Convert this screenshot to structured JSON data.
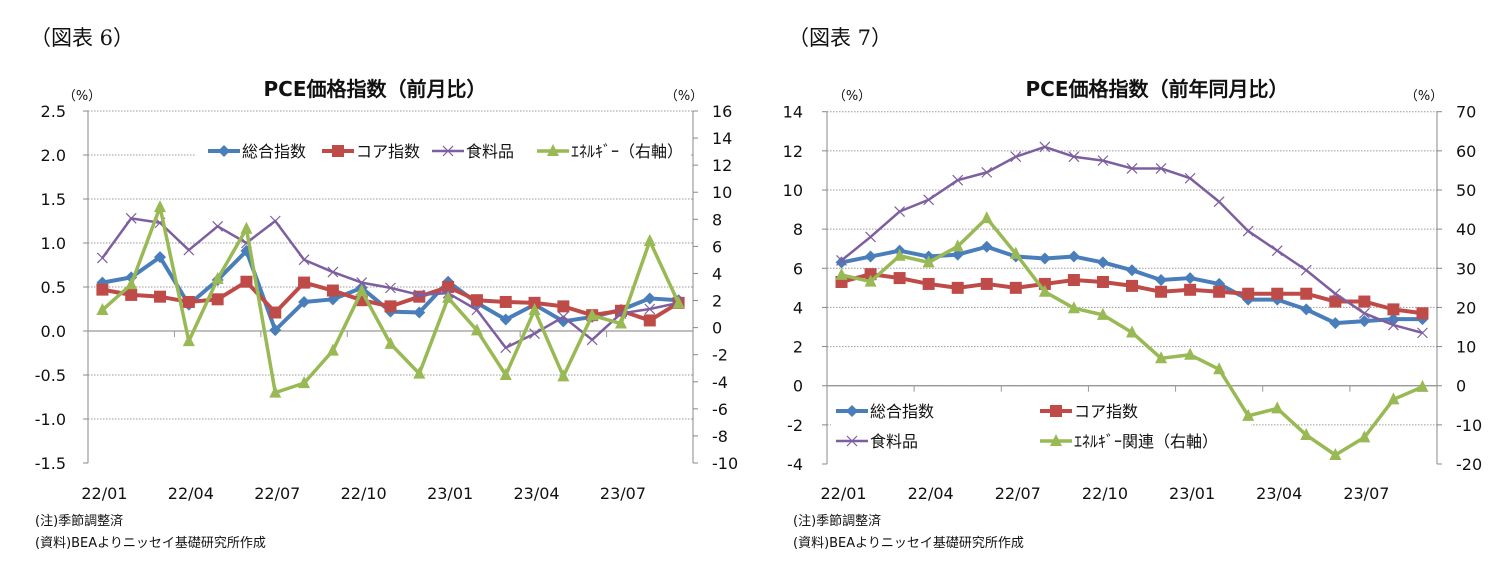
{
  "figures": [
    {
      "label": "（図表 6）",
      "note": "(注)季節調整済",
      "source": "(資料)BEAよりニッセイ基礎研究所作成"
    },
    {
      "label": "（図表 7）",
      "note": "(注)季節調整済",
      "source": "(資料)BEAよりニッセイ基礎研究所作成"
    }
  ],
  "chart_data": [
    {
      "type": "line",
      "title": "PCE価格指数（前月比）",
      "y_unit_left": "（%）",
      "y_unit_right": "（%）",
      "ylim_left": [
        -1.5,
        2.5
      ],
      "yticks_left": [
        "2.5",
        "2.0",
        "1.5",
        "1.0",
        "0.5",
        "0.0",
        "-0.5",
        "-1.0",
        "-1.5"
      ],
      "ylim_right": [
        -10,
        16
      ],
      "yticks_right": [
        "16",
        "14",
        "12",
        "10",
        "8",
        "6",
        "4",
        "2",
        "0",
        "-2",
        "-4",
        "-6",
        "-8",
        "-10"
      ],
      "grid": true,
      "legend_position": "top",
      "categories": [
        "22/01",
        "22/02",
        "22/03",
        "22/04",
        "22/05",
        "22/06",
        "22/07",
        "22/08",
        "22/09",
        "22/10",
        "22/11",
        "22/12",
        "23/01",
        "23/02",
        "23/03",
        "23/04",
        "23/05",
        "23/06",
        "23/07",
        "23/08",
        "23/09"
      ],
      "xtick_labels": [
        "22/01",
        "22/04",
        "22/07",
        "22/10",
        "23/01",
        "23/04",
        "23/07"
      ],
      "series": [
        {
          "name": "総合指数",
          "axis": "left",
          "color": "#4a7ebb",
          "marker": "diamond",
          "values": [
            0.55,
            0.61,
            0.84,
            0.3,
            0.58,
            0.91,
            0.01,
            0.33,
            0.36,
            0.49,
            0.22,
            0.21,
            0.56,
            0.32,
            0.13,
            0.3,
            0.11,
            0.16,
            0.24,
            0.37,
            0.35
          ]
        },
        {
          "name": "コア指数",
          "axis": "left",
          "color": "#be4b48",
          "marker": "square",
          "values": [
            0.47,
            0.41,
            0.39,
            0.33,
            0.36,
            0.56,
            0.21,
            0.55,
            0.46,
            0.35,
            0.28,
            0.39,
            0.5,
            0.35,
            0.33,
            0.32,
            0.28,
            0.18,
            0.23,
            0.12,
            0.32
          ]
        },
        {
          "name": "食料品",
          "axis": "left",
          "color": "#7d5fa0",
          "marker": "x",
          "values": [
            0.83,
            1.28,
            1.23,
            0.92,
            1.19,
            1.0,
            1.25,
            0.81,
            0.67,
            0.55,
            0.49,
            0.41,
            0.43,
            0.24,
            -0.19,
            -0.03,
            0.16,
            -0.1,
            0.2,
            0.25,
            0.32
          ]
        },
        {
          "name": "ｴﾈﾙｷﾞｰ（右軸）",
          "axis": "right",
          "color": "#98b954",
          "marker": "triangle",
          "values": [
            1.3,
            3.2,
            8.9,
            -1.0,
            3.6,
            7.3,
            -4.8,
            -4.1,
            -1.7,
            2.7,
            -1.2,
            -3.4,
            2.2,
            -0.2,
            -3.5,
            1.3,
            -3.6,
            0.9,
            0.3,
            6.4,
            1.8
          ]
        }
      ]
    },
    {
      "type": "line",
      "title": "PCE価格指数（前年同月比）",
      "y_unit_left": "（%）",
      "y_unit_right": "（%）",
      "ylim_left": [
        -4,
        14
      ],
      "yticks_left": [
        "14",
        "12",
        "10",
        "8",
        "6",
        "4",
        "2",
        "0",
        "-2",
        "-4"
      ],
      "ylim_right": [
        -20,
        70
      ],
      "yticks_right": [
        "70",
        "60",
        "50",
        "40",
        "30",
        "20",
        "10",
        "0",
        "-10",
        "-20"
      ],
      "grid": true,
      "legend_position": "bottom-inside",
      "categories": [
        "22/01",
        "22/02",
        "22/03",
        "22/04",
        "22/05",
        "22/06",
        "22/07",
        "22/08",
        "22/09",
        "22/10",
        "22/11",
        "22/12",
        "23/01",
        "23/02",
        "23/03",
        "23/04",
        "23/05",
        "23/06",
        "23/07",
        "23/08",
        "23/09"
      ],
      "xtick_labels": [
        "22/01",
        "22/04",
        "22/07",
        "22/10",
        "23/01",
        "23/04",
        "23/07"
      ],
      "series": [
        {
          "name": "総合指数",
          "axis": "left",
          "color": "#4a7ebb",
          "marker": "diamond",
          "values": [
            6.3,
            6.6,
            6.9,
            6.6,
            6.7,
            7.1,
            6.6,
            6.5,
            6.6,
            6.3,
            5.9,
            5.4,
            5.5,
            5.2,
            4.4,
            4.4,
            3.9,
            3.2,
            3.3,
            3.4,
            3.4
          ]
        },
        {
          "name": "コア指数",
          "axis": "left",
          "color": "#be4b48",
          "marker": "square",
          "values": [
            5.3,
            5.7,
            5.5,
            5.2,
            5.0,
            5.2,
            5.0,
            5.2,
            5.4,
            5.3,
            5.1,
            4.8,
            4.9,
            4.8,
            4.7,
            4.7,
            4.7,
            4.3,
            4.3,
            3.9,
            3.7
          ]
        },
        {
          "name": "食料品",
          "axis": "left",
          "color": "#7d5fa0",
          "marker": "x",
          "values": [
            6.4,
            7.6,
            8.9,
            9.5,
            10.5,
            10.9,
            11.7,
            12.2,
            11.7,
            11.5,
            11.1,
            11.1,
            10.6,
            9.4,
            7.9,
            6.9,
            5.9,
            4.7,
            3.7,
            3.1,
            2.7
          ]
        },
        {
          "name": "ｴﾈﾙｷﾞｰ関連（右軸）",
          "axis": "right",
          "color": "#98b954",
          "marker": "triangle",
          "values": [
            28.3,
            26.6,
            33.2,
            31.5,
            35.6,
            42.8,
            33.7,
            24.0,
            19.8,
            18.1,
            13.6,
            7.0,
            7.9,
            4.2,
            -7.7,
            -5.8,
            -12.6,
            -17.7,
            -13.2,
            -3.5,
            -0.3
          ]
        }
      ]
    }
  ]
}
